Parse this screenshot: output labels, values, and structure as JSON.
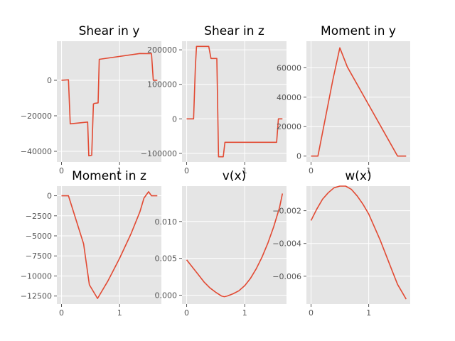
{
  "chart_data": [
    {
      "type": "line",
      "title": "Shear in y",
      "xlim": [
        -0.08,
        1.72
      ],
      "ylim": [
        -46000,
        22000
      ],
      "xticks": [
        {
          "v": 0,
          "label": "0"
        },
        {
          "v": 1,
          "label": "1"
        }
      ],
      "yticks": [
        {
          "v": 0,
          "label": "0"
        },
        {
          "v": -20000,
          "label": "−20000"
        },
        {
          "v": -40000,
          "label": "−40000"
        }
      ],
      "color": "#e24a33",
      "x": [
        0,
        0.12,
        0.15,
        0.45,
        0.47,
        0.52,
        0.55,
        0.57,
        0.63,
        0.65,
        1.35,
        1.55,
        1.58,
        1.65
      ],
      "y": [
        0,
        300,
        -24500,
        -23500,
        -42500,
        -42200,
        -13300,
        -13000,
        -12700,
        11800,
        15100,
        15000,
        0,
        0
      ]
    },
    {
      "type": "line",
      "title": "Shear in z",
      "xlim": [
        -0.08,
        1.72
      ],
      "ylim": [
        -125000,
        225000
      ],
      "xticks": [
        {
          "v": 0,
          "label": "0"
        },
        {
          "v": 1,
          "label": "1"
        }
      ],
      "yticks": [
        {
          "v": 200000,
          "label": "200000"
        },
        {
          "v": 100000,
          "label": "100000"
        },
        {
          "v": 0,
          "label": "0"
        },
        {
          "v": -100000,
          "label": "−100000"
        }
      ],
      "color": "#e24a33",
      "x": [
        0,
        0.12,
        0.15,
        0.17,
        0.38,
        0.42,
        0.52,
        0.55,
        0.63,
        0.66,
        1.55,
        1.58,
        1.65
      ],
      "y": [
        0,
        0,
        150000,
        210000,
        210000,
        175000,
        175000,
        -110000,
        -110000,
        -68000,
        -68000,
        0,
        0
      ]
    },
    {
      "type": "line",
      "title": "Moment in y",
      "xlim": [
        -0.08,
        1.72
      ],
      "ylim": [
        -4000,
        78000
      ],
      "xticks": [
        {
          "v": 0,
          "label": "0"
        },
        {
          "v": 1,
          "label": "1"
        }
      ],
      "yticks": [
        {
          "v": 0,
          "label": "0"
        },
        {
          "v": 20000,
          "label": "20000"
        },
        {
          "v": 40000,
          "label": "40000"
        },
        {
          "v": 60000,
          "label": "60000"
        }
      ],
      "color": "#e24a33",
      "x": [
        0,
        0.12,
        0.38,
        0.5,
        0.63,
        1.5,
        1.52,
        1.65
      ],
      "y": [
        0,
        0,
        52000,
        73500,
        60500,
        0,
        0,
        0
      ]
    },
    {
      "type": "line",
      "title": "Moment in z",
      "xlim": [
        -0.08,
        1.72
      ],
      "ylim": [
        -13500,
        1200
      ],
      "xticks": [
        {
          "v": 0,
          "label": "0"
        },
        {
          "v": 1,
          "label": "1"
        }
      ],
      "yticks": [
        {
          "v": 0,
          "label": "0"
        },
        {
          "v": -2500,
          "label": "−2500"
        },
        {
          "v": -5000,
          "label": "−5000"
        },
        {
          "v": -7500,
          "label": "−7500"
        },
        {
          "v": -10000,
          "label": "−10000"
        },
        {
          "v": -12500,
          "label": "−12500"
        }
      ],
      "color": "#e24a33",
      "x": [
        0,
        0.12,
        0.38,
        0.48,
        0.62,
        0.8,
        1.0,
        1.2,
        1.35,
        1.42,
        1.5,
        1.55,
        1.58,
        1.65
      ],
      "y": [
        0,
        0,
        -6000,
        -11100,
        -12800,
        -10600,
        -7800,
        -4700,
        -2000,
        -300,
        500,
        0,
        0,
        0
      ]
    },
    {
      "type": "line",
      "title": "v(x)",
      "xlim": [
        -0.08,
        1.72
      ],
      "ylim": [
        -0.0012,
        0.0148
      ],
      "xticks": [
        {
          "v": 0,
          "label": "0"
        },
        {
          "v": 1,
          "label": "1"
        }
      ],
      "yticks": [
        {
          "v": 0,
          "label": "0.000"
        },
        {
          "v": 0.005,
          "label": "0.005"
        },
        {
          "v": 0.01,
          "label": "0.010"
        }
      ],
      "color": "#e24a33",
      "x": [
        0,
        0.1,
        0.2,
        0.3,
        0.4,
        0.5,
        0.6,
        0.65,
        0.7,
        0.8,
        0.9,
        1.0,
        1.1,
        1.2,
        1.3,
        1.4,
        1.5,
        1.6,
        1.65
      ],
      "y": [
        0.0048,
        0.0038,
        0.0028,
        0.0018,
        0.001,
        0.0004,
        -0.0001,
        -0.0002,
        -0.0001,
        0.0002,
        0.0006,
        0.0013,
        0.0023,
        0.0036,
        0.0052,
        0.0071,
        0.0093,
        0.0119,
        0.0138
      ]
    },
    {
      "type": "line",
      "title": "w(x)",
      "xlim": [
        -0.08,
        1.72
      ],
      "ylim": [
        -0.0077,
        -0.0005
      ],
      "xticks": [
        {
          "v": 0,
          "label": "0"
        },
        {
          "v": 1,
          "label": "1"
        }
      ],
      "yticks": [
        {
          "v": -0.002,
          "label": "−0.002"
        },
        {
          "v": -0.004,
          "label": "−0.004"
        },
        {
          "v": -0.006,
          "label": "−0.006"
        }
      ],
      "color": "#e24a33",
      "x": [
        0,
        0.1,
        0.2,
        0.3,
        0.4,
        0.5,
        0.55,
        0.6,
        0.7,
        0.8,
        0.9,
        1.0,
        1.1,
        1.2,
        1.3,
        1.4,
        1.5,
        1.6,
        1.65
      ],
      "y": [
        -0.0026,
        -0.0019,
        -0.0013,
        -0.0009,
        -0.0006,
        -0.0005,
        -0.0005,
        -0.0005,
        -0.0007,
        -0.0011,
        -0.0016,
        -0.0022,
        -0.003,
        -0.0038,
        -0.0047,
        -0.0056,
        -0.0065,
        -0.0071,
        -0.0074
      ]
    }
  ]
}
